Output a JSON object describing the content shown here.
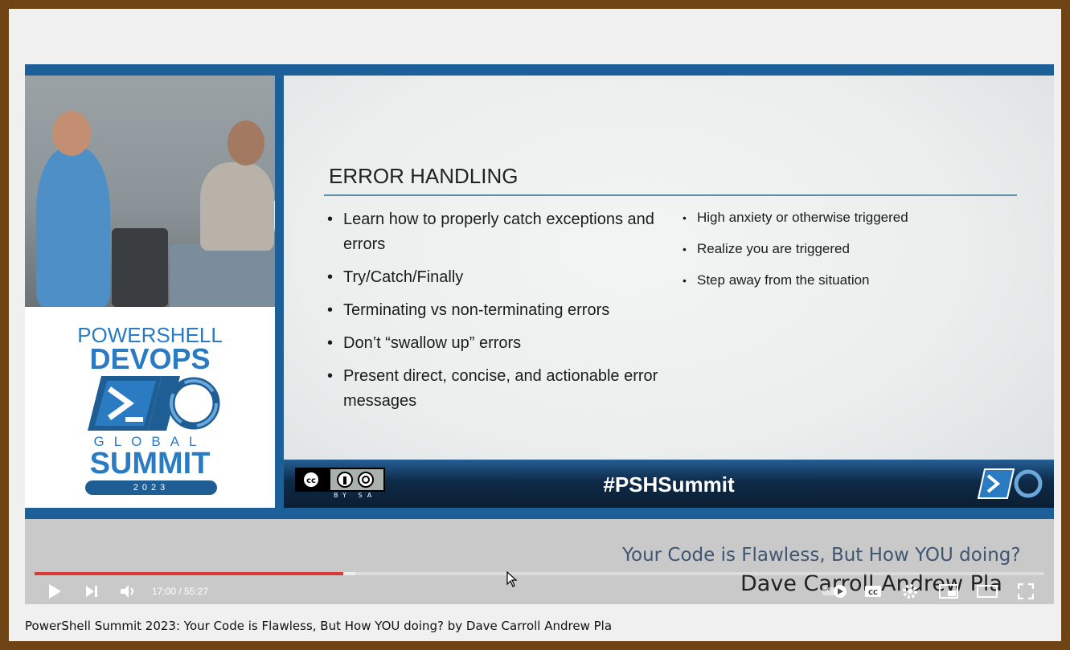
{
  "video": {
    "slide": {
      "title": "ERROR HANDLING",
      "bullets_left": [
        "Learn how to properly catch exceptions and errors",
        "Try/Catch/Finally",
        "Terminating vs non-terminating errors",
        "Don’t “swallow up” errors",
        "Present direct, concise, and actionable error messages"
      ],
      "bullets_right": [
        "High anxiety or otherwise triggered",
        "Realize you are triggered",
        "Step away from the situation"
      ],
      "hashtag": "#PSHSummit",
      "license_badge": "BY SA"
    },
    "logo": {
      "line1": "POWERSHELL",
      "line2": "DEVOPS",
      "line3": "GLOBAL",
      "line4": "SUMMIT",
      "year": "2023"
    },
    "subtitle_line1": "Your Code is Flawless, But How YOU doing?",
    "subtitle_line2": "Dave Carroll Andrew Pla",
    "player": {
      "time_display": "17:00 / 55:27",
      "played_fraction": 0.306,
      "loaded_fraction": 0.318
    }
  },
  "page": {
    "caption": "PowerShell Summit 2023: Your Code is Flawless, But How YOU doing? by Dave Carroll Andrew Pla"
  },
  "colors": {
    "frame": "#6e4414",
    "player_border": "#1d5f98",
    "progress_played": "#d63a3a",
    "brand_blue": "#2b7bc2"
  },
  "icons": [
    "play-icon",
    "next-icon",
    "volume-icon",
    "autoplay-toggle-icon",
    "captions-icon",
    "settings-icon",
    "miniplayer-icon",
    "theater-icon",
    "fullscreen-icon"
  ]
}
